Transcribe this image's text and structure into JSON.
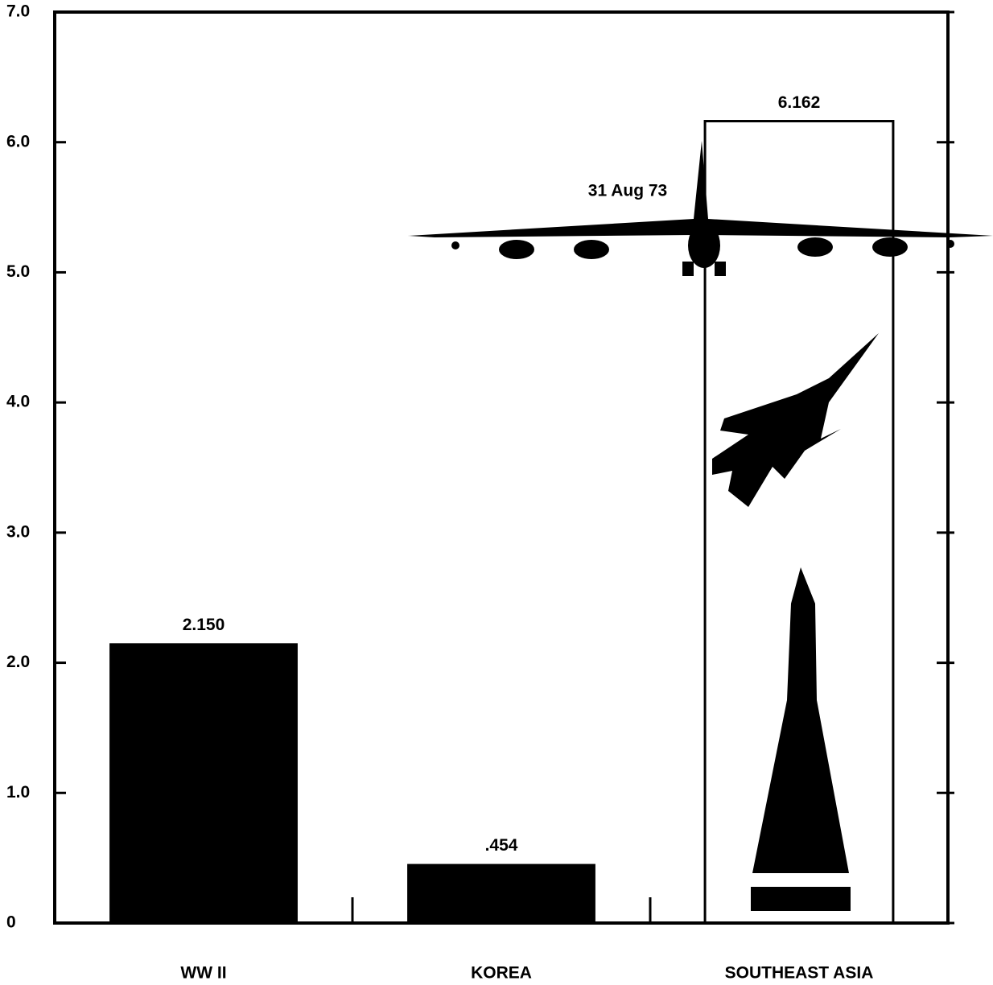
{
  "chart_data": {
    "type": "bar",
    "categories": [
      "WW II",
      "KOREA",
      "SOUTHEAST ASIA"
    ],
    "values": [
      2.15,
      0.454,
      6.162
    ],
    "value_labels": [
      "2.150",
      ".454",
      "6.162"
    ],
    "fills": [
      "#000000",
      "#000000",
      "none"
    ],
    "annotation": "31 Aug 73",
    "ylim": [
      0,
      7
    ],
    "yticks": [
      0,
      {
        "value": 1,
        "label": "1.0"
      },
      {
        "value": 2,
        "label": "2.0"
      },
      {
        "value": 3,
        "label": "3.0"
      },
      {
        "value": 4,
        "label": "4.0"
      },
      {
        "value": 5,
        "label": "5.0"
      },
      {
        "value": 6,
        "label": "6.0"
      },
      {
        "value": 7,
        "label": "7.0"
      }
    ]
  }
}
